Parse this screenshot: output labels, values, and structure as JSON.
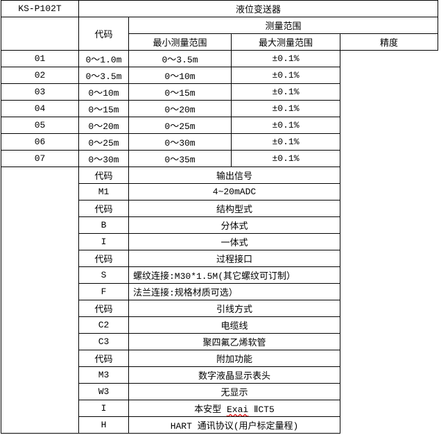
{
  "model": "KS-P102T",
  "title": "液位变送器",
  "range_table": {
    "code_header": "代码",
    "group_header": "测量范围",
    "columns": [
      "最小测量范围",
      "最大测量范围",
      "精度"
    ],
    "rows": [
      {
        "code": "01",
        "min": "0～1.0m",
        "max": "0～3.5m",
        "accuracy": "±0.1%"
      },
      {
        "code": "02",
        "min": "0～3.5m",
        "max": "0～10m",
        "accuracy": "±0.1%"
      },
      {
        "code": "03",
        "min": "0～10m",
        "max": "0～15m",
        "accuracy": "±0.1%"
      },
      {
        "code": "04",
        "min": "0～15m",
        "max": "0～20m",
        "accuracy": "±0.1%"
      },
      {
        "code": "05",
        "min": "0～20m",
        "max": "0～25m",
        "accuracy": "±0.1%"
      },
      {
        "code": "06",
        "min": "0～25m",
        "max": "0～30m",
        "accuracy": "±0.1%"
      },
      {
        "code": "07",
        "min": "0～30m",
        "max": "0～35m",
        "accuracy": "±0.1%"
      }
    ]
  },
  "options": [
    {
      "code": "代码",
      "desc": "输出信号"
    },
    {
      "code": "M1",
      "desc": "4~20mADC"
    },
    {
      "code": "代码",
      "desc": "结构型式"
    },
    {
      "code": "B",
      "desc": "分体式"
    },
    {
      "code": "I",
      "desc": "一体式"
    },
    {
      "code": "代码",
      "desc": "过程接口"
    },
    {
      "code": "S",
      "desc": "螺纹连接:M30*1.5M(其它螺纹可订制）"
    },
    {
      "code": "F",
      "desc": "法兰连接:规格材质可选）"
    },
    {
      "code": "代码",
      "desc": "引线方式"
    },
    {
      "code": "C2",
      "desc": "电缆线"
    },
    {
      "code": "C3",
      "desc": "聚四氟乙烯软管"
    },
    {
      "code": "代码",
      "desc": "附加功能"
    },
    {
      "code": "M3",
      "desc": "数字液晶显示表头"
    },
    {
      "code": "W3",
      "desc": "无显示"
    },
    {
      "code": "I",
      "desc_pre": "本安型 ",
      "desc_mark": "Exai",
      "desc_post": " ⅡCT5"
    },
    {
      "code": "H",
      "desc": "HART 通讯协议(用户标定量程)"
    }
  ]
}
